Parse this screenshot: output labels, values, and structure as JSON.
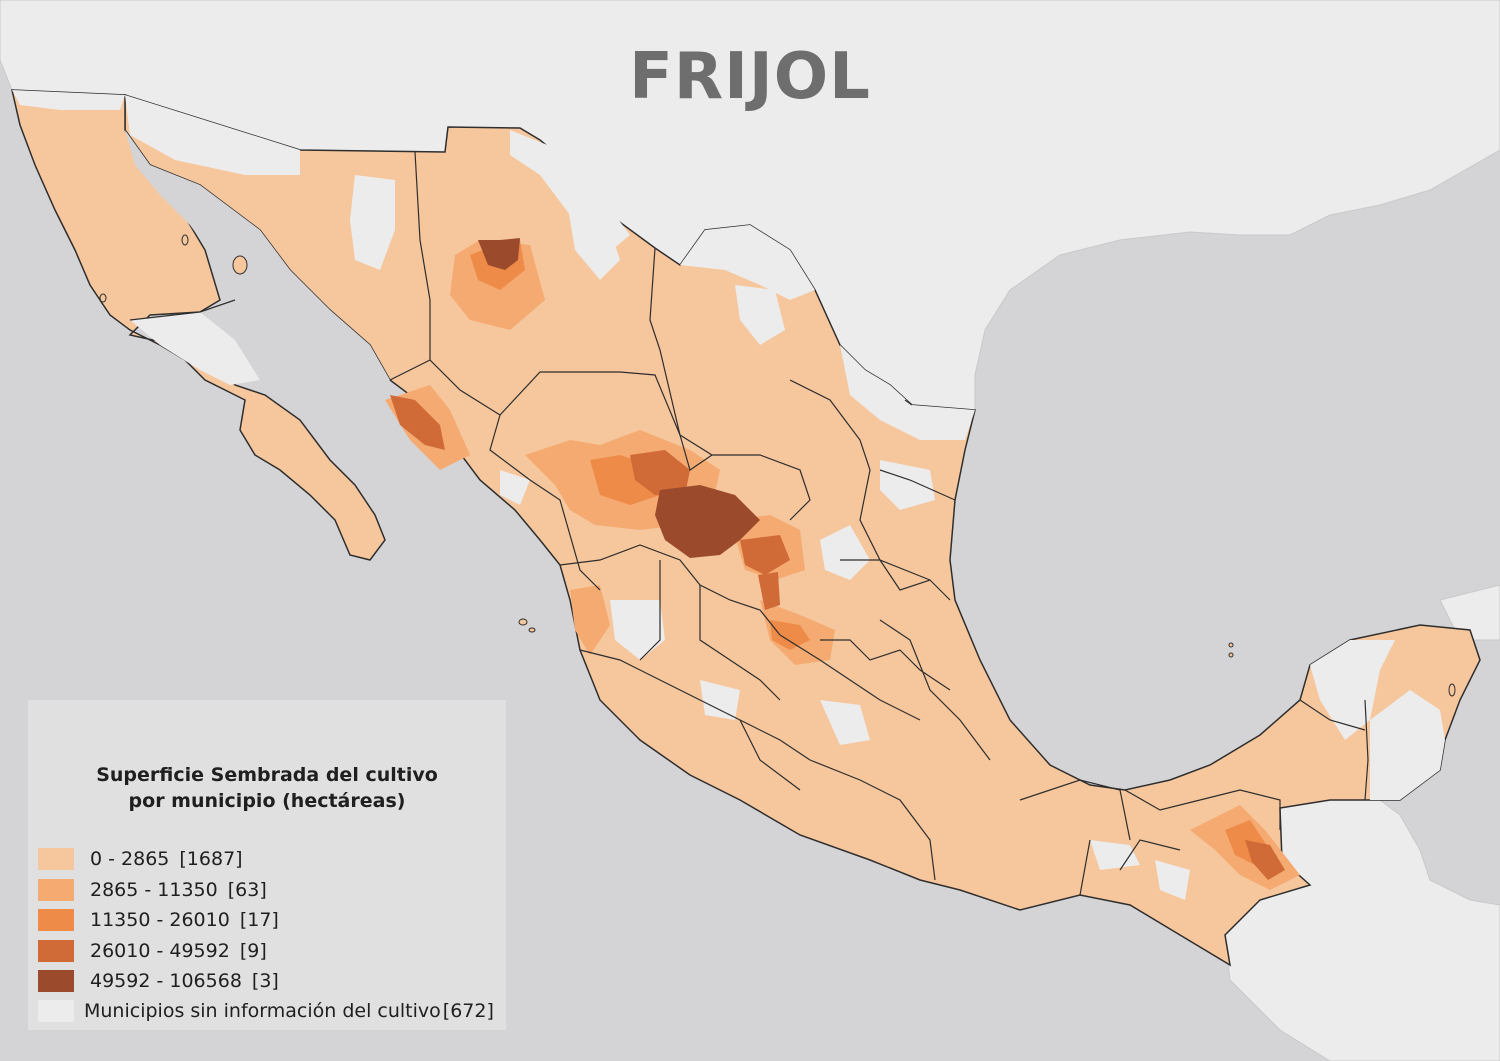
{
  "title": "FRIJOL",
  "legend": {
    "title_line1": "Superficie Sembrada del cultivo",
    "title_line2": "por municipio (hectáreas)",
    "items": [
      {
        "label": "0 - 2865",
        "count": "[1687]",
        "color": "#f6c69c"
      },
      {
        "label": "2865 - 11350",
        "count": "[63]",
        "color": "#f4aa71"
      },
      {
        "label": "11350 - 26010",
        "count": "[17]",
        "color": "#ee8b48"
      },
      {
        "label": "26010 - 49592",
        "count": "[9]",
        "color": "#d06a36"
      },
      {
        "label": "49592 - 106568",
        "count": "[3]",
        "color": "#9b4a2b"
      },
      {
        "label": "Municipios sin información del cultivo",
        "count": "[672]",
        "color": "#ececec"
      }
    ]
  },
  "colors": {
    "sea": "#d4d4d6",
    "foreign_land": "#ececec",
    "state_border": "#2e2e2e",
    "class1": "#f6c69c",
    "class2": "#f4aa71",
    "class3": "#ee8b48",
    "class4": "#d06a36",
    "class5": "#9b4a2b",
    "no_data": "#ececec"
  }
}
